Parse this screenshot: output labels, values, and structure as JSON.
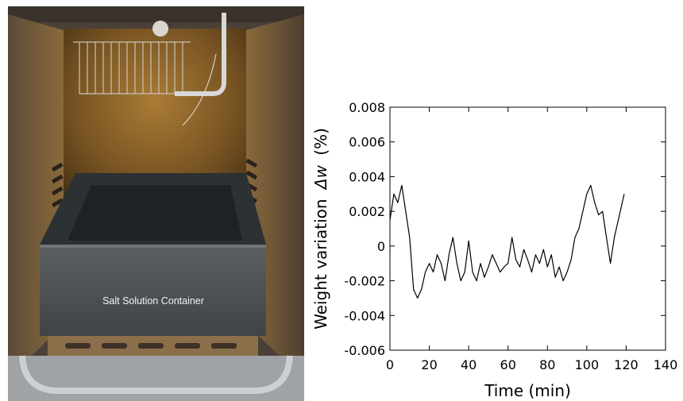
{
  "photo": {
    "caption": "Salt Solution Container"
  },
  "chart_data": {
    "type": "line",
    "title": "",
    "xlabel": "Time (min)",
    "ylabel_text": "Weight variation",
    "ylabel_symbol": "Δw",
    "ylabel_unit": "(%)",
    "xlim": [
      0,
      140
    ],
    "ylim": [
      -0.006,
      0.008
    ],
    "x_ticks": [
      0,
      20,
      40,
      60,
      80,
      100,
      120,
      140
    ],
    "x_tick_labels": [
      "0",
      "20",
      "40",
      "60",
      "80",
      "100",
      "120",
      "140"
    ],
    "y_ticks": [
      -0.006,
      -0.004,
      -0.002,
      0,
      0.002,
      0.004,
      0.006,
      0.008
    ],
    "y_tick_labels": [
      "-0.006",
      "-0.004",
      "-0.002",
      "0",
      "0.002",
      "0.004",
      "0.006",
      "0.008"
    ],
    "grid": false,
    "line_color": "#000000",
    "series": [
      {
        "x": [
          0,
          2,
          4,
          6,
          8,
          10,
          12,
          14,
          16,
          18,
          20,
          22,
          24,
          26,
          28,
          30,
          32,
          34,
          36,
          38,
          40,
          42,
          44,
          46,
          48,
          50,
          52,
          54,
          56,
          58,
          60,
          62,
          64,
          66,
          68,
          70,
          72,
          74,
          76,
          78,
          80,
          82,
          84,
          86,
          88,
          90,
          92,
          94,
          96,
          98,
          100,
          102,
          104,
          106,
          108,
          110,
          112,
          114,
          116,
          118,
          119
        ],
        "y": [
          0.0015,
          0.003,
          0.0025,
          0.0035,
          0.002,
          0.0005,
          -0.0025,
          -0.003,
          -0.0025,
          -0.0015,
          -0.001,
          -0.0015,
          -0.0005,
          -0.001,
          -0.002,
          -0.0005,
          0.0005,
          -0.001,
          -0.002,
          -0.0015,
          0.0003,
          -0.0015,
          -0.002,
          -0.001,
          -0.0018,
          -0.0012,
          -0.0005,
          -0.001,
          -0.0015,
          -0.0012,
          -0.001,
          0.0005,
          -0.0008,
          -0.0012,
          -0.0002,
          -0.0008,
          -0.0015,
          -0.0005,
          -0.001,
          -0.0002,
          -0.0012,
          -0.0005,
          -0.0018,
          -0.0012,
          -0.002,
          -0.0015,
          -0.0008,
          0.0005,
          0.001,
          0.002,
          0.003,
          0.0035,
          0.0025,
          0.0018,
          0.002,
          0.0005,
          -0.001,
          0.0005,
          0.0015,
          0.0025,
          0.003
        ]
      }
    ]
  }
}
